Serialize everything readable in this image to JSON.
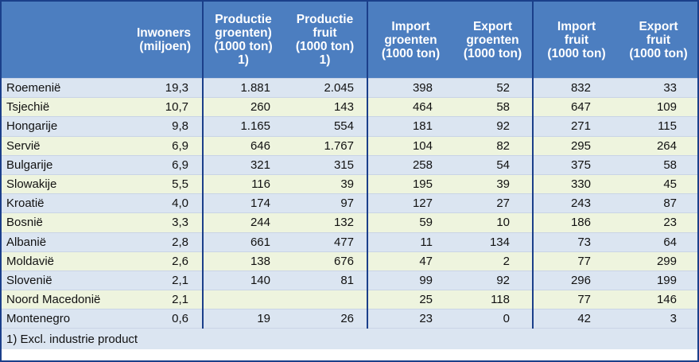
{
  "table": {
    "headers": [
      {
        "key": "country",
        "label": ""
      },
      {
        "key": "inhabitants",
        "label": "Inwoners\n(miljoen)"
      },
      {
        "key": "prod_veg",
        "label": "Productie\ngroenten)\n(1000 ton)\n1)"
      },
      {
        "key": "prod_fruit",
        "label": "Productie\nfruit\n(1000 ton)\n1)"
      },
      {
        "key": "import_veg",
        "label": "Import\ngroenten\n(1000 ton)"
      },
      {
        "key": "export_veg",
        "label": "Export\ngroenten\n(1000 ton)"
      },
      {
        "key": "import_fruit",
        "label": "Import\nfruit\n(1000 ton)"
      },
      {
        "key": "export_fruit",
        "label": "Export\nfruit\n(1000 ton)"
      }
    ],
    "rows": [
      [
        "Roemenië",
        "19,3",
        "1.881",
        "2.045",
        "398",
        "52",
        "832",
        "33"
      ],
      [
        "Tsjechië",
        "10,7",
        "260",
        "143",
        "464",
        "58",
        "647",
        "109"
      ],
      [
        "Hongarije",
        "9,8",
        "1.165",
        "554",
        "181",
        "92",
        "271",
        "115"
      ],
      [
        "Servië",
        "6,9",
        "646",
        "1.767",
        "104",
        "82",
        "295",
        "264"
      ],
      [
        "Bulgarije",
        "6,9",
        "321",
        "315",
        "258",
        "54",
        "375",
        "58"
      ],
      [
        "Slowakije",
        "5,5",
        "116",
        "39",
        "195",
        "39",
        "330",
        "45"
      ],
      [
        "Kroatië",
        "4,0",
        "174",
        "97",
        "127",
        "27",
        "243",
        "87"
      ],
      [
        "Bosnië",
        "3,3",
        "244",
        "132",
        "59",
        "10",
        "186",
        "23"
      ],
      [
        "Albanië",
        "2,8",
        "661",
        "477",
        "11",
        "134",
        "73",
        "64"
      ],
      [
        "Moldavië",
        "2,6",
        "138",
        "676",
        "47",
        "2",
        "77",
        "299"
      ],
      [
        "Slovenië",
        "2,1",
        "140",
        "81",
        "99",
        "92",
        "296",
        "199"
      ],
      [
        "Noord Macedonië",
        "2,1",
        "",
        "",
        "25",
        "118",
        "77",
        "146"
      ],
      [
        "Montenegro",
        "0,6",
        "19",
        "26",
        "23",
        "0",
        "42",
        "3"
      ]
    ],
    "footnote": "1) Excl. industrie product"
  },
  "colors": {
    "header_bg": "#4c7ec0",
    "row_odd_bg": "#dbe5f1",
    "row_even_bg": "#eef4de",
    "border": "#1b3f8a"
  }
}
